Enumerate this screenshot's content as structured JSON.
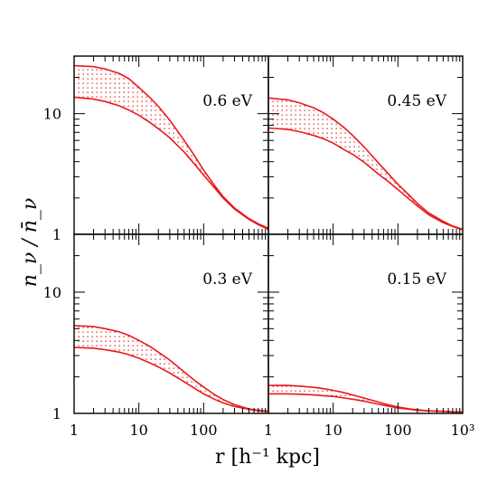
{
  "figure": {
    "ylabel": "n_ν / n̄_ν",
    "xlabel": "r [h⁻¹ kpc]"
  },
  "chart_data": [
    {
      "type": "area",
      "panel": "top-left",
      "annotation": "0.6 eV",
      "xscale": "log",
      "yscale": "log",
      "xlim": [
        1,
        1000
      ],
      "ylim": [
        1,
        30
      ],
      "xticklabels": [],
      "yticklabels": [
        "10",
        "1"
      ],
      "band_color": "#e8191c",
      "series": [
        {
          "x": [
            1,
            2,
            3,
            5,
            7,
            10,
            15,
            20,
            30,
            50,
            70,
            100,
            150,
            200,
            300,
            500,
            700,
            1000
          ],
          "values": [
            25,
            24.5,
            23.5,
            21.5,
            19.5,
            16.5,
            13.5,
            11.5,
            8.8,
            6.0,
            4.6,
            3.4,
            2.5,
            2.05,
            1.65,
            1.35,
            1.22,
            1.12
          ]
        },
        {
          "x": [
            1,
            2,
            3,
            5,
            7,
            10,
            15,
            20,
            30,
            50,
            70,
            100,
            150,
            200,
            300,
            500,
            700,
            1000
          ],
          "values": [
            13.7,
            13.2,
            12.6,
            11.6,
            10.7,
            9.7,
            8.4,
            7.5,
            6.3,
            4.8,
            3.9,
            3.1,
            2.4,
            2.0,
            1.62,
            1.33,
            1.2,
            1.1
          ]
        }
      ]
    },
    {
      "type": "area",
      "panel": "top-right",
      "annotation": "0.45 eV",
      "xscale": "log",
      "yscale": "log",
      "xlim": [
        1,
        1000
      ],
      "ylim": [
        1,
        30
      ],
      "xticklabels": [],
      "yticklabels": [],
      "band_color": "#e8191c",
      "series": [
        {
          "x": [
            1,
            2,
            3,
            5,
            7,
            10,
            15,
            20,
            30,
            50,
            70,
            100,
            150,
            200,
            300,
            500,
            700,
            1000
          ],
          "values": [
            13.5,
            13.0,
            12.3,
            11.2,
            10.2,
            9.0,
            7.6,
            6.6,
            5.3,
            3.9,
            3.2,
            2.6,
            2.1,
            1.8,
            1.5,
            1.28,
            1.17,
            1.1
          ]
        },
        {
          "x": [
            1,
            2,
            3,
            5,
            7,
            10,
            15,
            20,
            30,
            50,
            70,
            100,
            150,
            200,
            300,
            500,
            700,
            1000
          ],
          "values": [
            7.6,
            7.4,
            7.1,
            6.6,
            6.2,
            5.7,
            5.0,
            4.6,
            3.95,
            3.15,
            2.75,
            2.35,
            1.95,
            1.72,
            1.45,
            1.25,
            1.16,
            1.09
          ]
        }
      ]
    },
    {
      "type": "area",
      "panel": "bottom-left",
      "annotation": "0.3 eV",
      "xscale": "log",
      "yscale": "log",
      "xlim": [
        1,
        1000
      ],
      "ylim": [
        1,
        30
      ],
      "xticklabels": [
        "1",
        "10",
        "100",
        "1"
      ],
      "yticklabels": [
        "10",
        "1"
      ],
      "band_color": "#e8191c",
      "series": [
        {
          "x": [
            1,
            2,
            3,
            5,
            7,
            10,
            15,
            20,
            30,
            50,
            70,
            100,
            150,
            200,
            300,
            500,
            700,
            1000
          ],
          "values": [
            5.3,
            5.2,
            5.0,
            4.7,
            4.4,
            4.0,
            3.55,
            3.2,
            2.75,
            2.2,
            1.9,
            1.65,
            1.42,
            1.3,
            1.18,
            1.09,
            1.06,
            1.04
          ]
        },
        {
          "x": [
            1,
            2,
            3,
            5,
            7,
            10,
            15,
            20,
            30,
            50,
            70,
            100,
            150,
            200,
            300,
            500,
            700,
            1000
          ],
          "values": [
            3.5,
            3.45,
            3.35,
            3.2,
            3.05,
            2.85,
            2.6,
            2.42,
            2.15,
            1.82,
            1.63,
            1.45,
            1.3,
            1.22,
            1.14,
            1.08,
            1.05,
            1.04
          ]
        }
      ]
    },
    {
      "type": "area",
      "panel": "bottom-right",
      "annotation": "0.15 eV",
      "xscale": "log",
      "yscale": "log",
      "xlim": [
        1,
        1000
      ],
      "ylim": [
        1,
        30
      ],
      "xticklabels": [
        "10",
        "100",
        "10³"
      ],
      "yticklabels": [],
      "band_color": "#e8191c",
      "series": [
        {
          "x": [
            1,
            2,
            3,
            5,
            7,
            10,
            15,
            20,
            30,
            50,
            70,
            100,
            150,
            200,
            300,
            500,
            700,
            1000
          ],
          "values": [
            1.7,
            1.7,
            1.68,
            1.64,
            1.6,
            1.55,
            1.48,
            1.42,
            1.34,
            1.24,
            1.18,
            1.13,
            1.09,
            1.07,
            1.05,
            1.04,
            1.03,
            1.03
          ]
        },
        {
          "x": [
            1,
            2,
            3,
            5,
            7,
            10,
            15,
            20,
            30,
            50,
            70,
            100,
            150,
            200,
            300,
            500,
            700,
            1000
          ],
          "values": [
            1.45,
            1.45,
            1.44,
            1.42,
            1.4,
            1.38,
            1.34,
            1.31,
            1.26,
            1.19,
            1.15,
            1.11,
            1.08,
            1.06,
            1.05,
            1.04,
            1.03,
            1.03
          ]
        }
      ]
    }
  ]
}
